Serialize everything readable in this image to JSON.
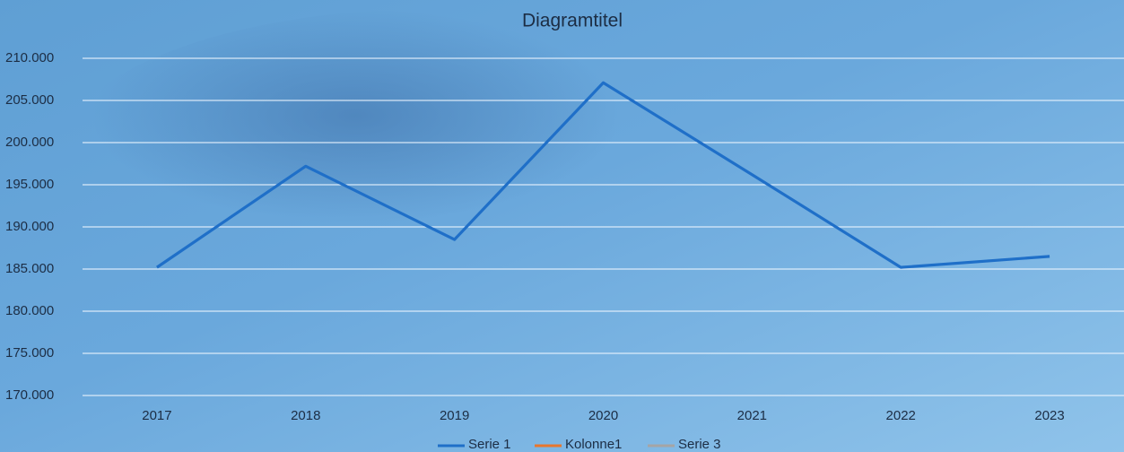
{
  "chart_data": {
    "type": "line",
    "title": "Diagramtitel",
    "categories": [
      "2017",
      "2018",
      "2019",
      "2020",
      "2021",
      "2022",
      "2023"
    ],
    "series": [
      {
        "name": "Serie 1",
        "color": "#1f6fc8",
        "values": [
          185200,
          197200,
          188500,
          207100,
          196200,
          185200,
          186500
        ]
      },
      {
        "name": "Kolonne1",
        "color": "#e8762d",
        "values": [
          null,
          null,
          null,
          null,
          null,
          null,
          null
        ]
      },
      {
        "name": "Serie 3",
        "color": "#a5a5a5",
        "values": [
          null,
          null,
          null,
          null,
          null,
          null,
          null
        ]
      }
    ],
    "ylim": [
      170000,
      210000
    ],
    "yticks": [
      {
        "value": 170000,
        "label": "170.000"
      },
      {
        "value": 175000,
        "label": "175.000"
      },
      {
        "value": 180000,
        "label": "180.000"
      },
      {
        "value": 185000,
        "label": "185.000"
      },
      {
        "value": 190000,
        "label": "190.000"
      },
      {
        "value": 195000,
        "label": "195.000"
      },
      {
        "value": 200000,
        "label": "200.000"
      },
      {
        "value": 205000,
        "label": "205.000"
      },
      {
        "value": 210000,
        "label": "210.000"
      }
    ],
    "grid": true,
    "legend": "bottom"
  }
}
